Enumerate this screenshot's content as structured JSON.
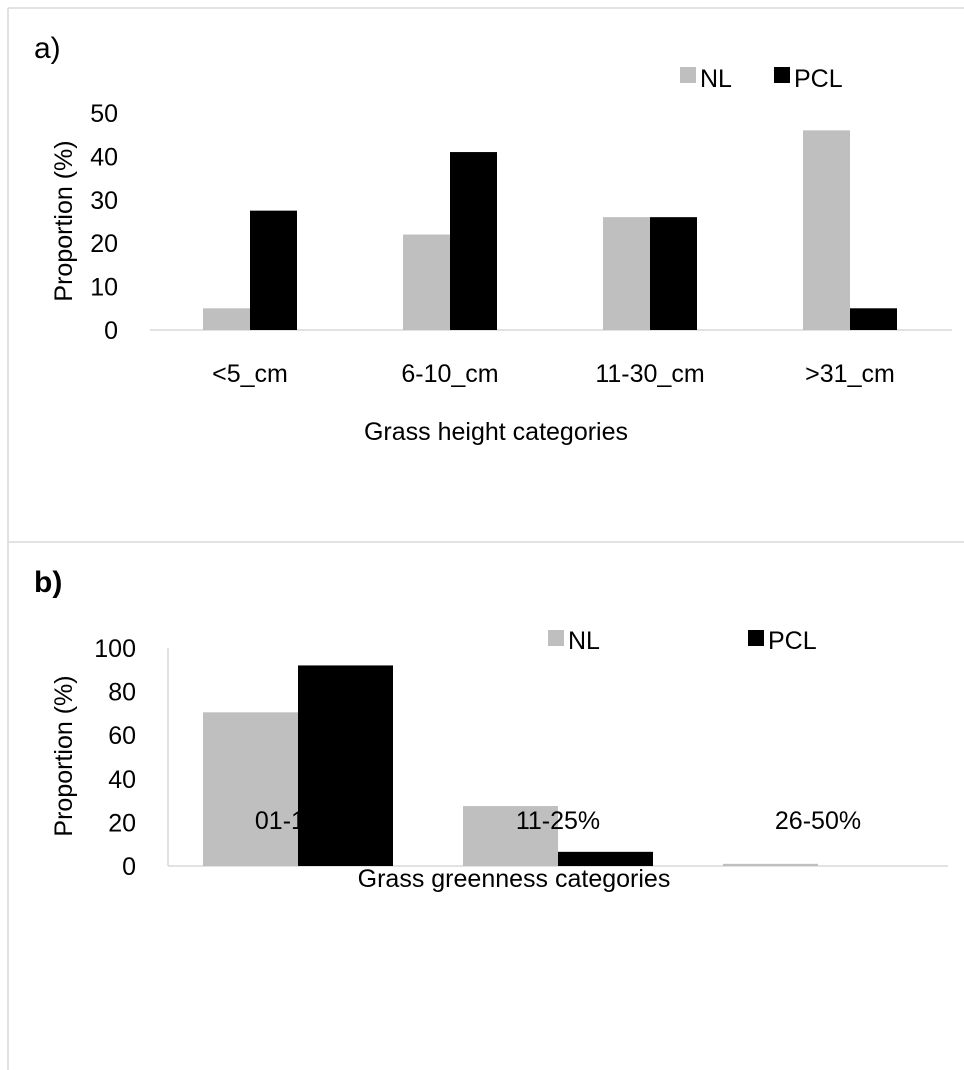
{
  "chart_data": [
    {
      "type": "bar",
      "panel_label": "a)",
      "categories": [
        "<5_cm",
        "6-10_cm",
        "11-30_cm",
        ">31_cm"
      ],
      "series": [
        {
          "name": "NL",
          "values": [
            5,
            22,
            26,
            46
          ],
          "color": "#bfbfbf"
        },
        {
          "name": "PCL",
          "values": [
            27.5,
            41,
            26,
            5
          ],
          "color": "#000000"
        }
      ],
      "xlabel": "Grass height categories",
      "ylabel": "Proportion (%)",
      "ylim": [
        0,
        50
      ],
      "yticks": [
        "0",
        "10",
        "20",
        "30",
        "40",
        "50"
      ],
      "grid": false,
      "legend_position": "top-right"
    },
    {
      "type": "bar",
      "panel_label": "b)",
      "categories": [
        "01-10%",
        "11-25%",
        "26-50%"
      ],
      "series": [
        {
          "name": "NL",
          "values": [
            70.5,
            27.5,
            1
          ],
          "color": "#bfbfbf"
        },
        {
          "name": "PCL",
          "values": [
            92,
            6.5,
            0
          ],
          "color": "#000000"
        }
      ],
      "xlabel": "Grass greenness categories",
      "ylabel": "Proportion (%)",
      "ylim": [
        0,
        100
      ],
      "yticks": [
        "0",
        "20",
        "40",
        "60",
        "80",
        "100"
      ],
      "grid": false,
      "legend_position": "top-right"
    }
  ]
}
